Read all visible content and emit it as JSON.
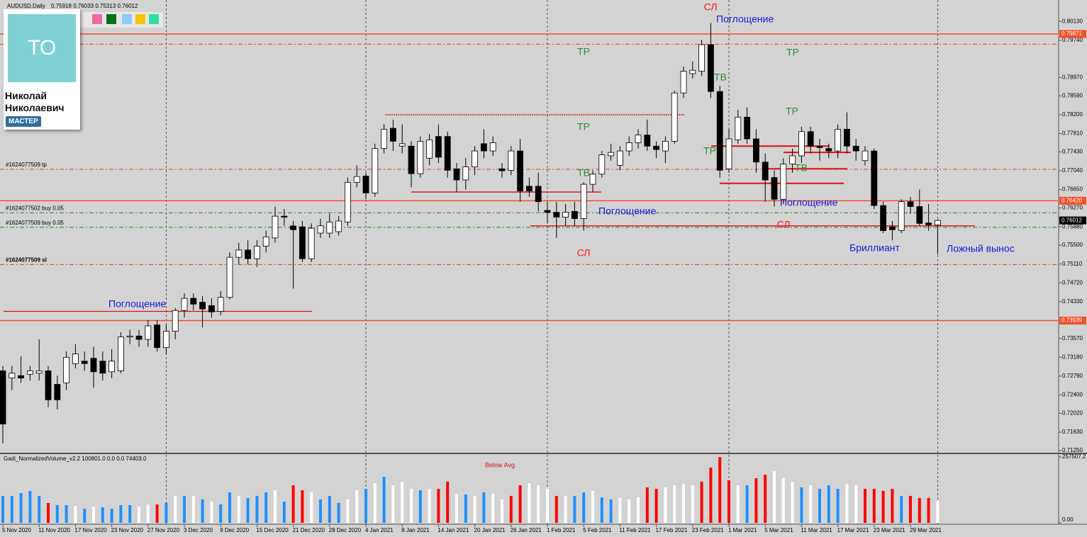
{
  "chart_data": {
    "type": "candlestick",
    "title": "AUDUSD,Daily",
    "categories": [
      "5 Nov 2020",
      null,
      null,
      null,
      "11 Nov 2020",
      null,
      null,
      null,
      "17 Nov 2020",
      null,
      null,
      null,
      "23 Nov 2020",
      null,
      null,
      null,
      "27 Nov 2020",
      null,
      null,
      null,
      "3 Dec 2020",
      null,
      null,
      null,
      "9 Dec 2020",
      null,
      null,
      null,
      "15 Dec 2020",
      null,
      null,
      null,
      "21 Dec 2020",
      null,
      null,
      null,
      "28 Dec 2020",
      null,
      null,
      null,
      "4 Jan 2021",
      null,
      null,
      null,
      "8 Jan 2021",
      null,
      null,
      null,
      "14 Jan 2021",
      null,
      null,
      null,
      "20 Jan 2021",
      null,
      null,
      null,
      "26 Jan 2021",
      null,
      null,
      null,
      "1 Feb 2021",
      null,
      null,
      null,
      "5 Feb 2021",
      null,
      null,
      null,
      "11 Feb 2021",
      null,
      null,
      null,
      "17 Feb 2021",
      null,
      null,
      null,
      "23 Feb 2021",
      null,
      null,
      null,
      "1 Mar 2021",
      null,
      null,
      null,
      "5 Mar 2021",
      null,
      null,
      null,
      "11 Mar 2021",
      null,
      null,
      null,
      "17 Mar 2021",
      null,
      null,
      null,
      "23 Mar 2021",
      null,
      null,
      null,
      "29 Mar 2021",
      null,
      null,
      null
    ],
    "open": [
      0.729,
      0.7275,
      0.728,
      0.7283,
      0.7285,
      0.729,
      0.7262,
      0.7265,
      0.7305,
      0.731,
      0.7316,
      0.731,
      0.7288,
      0.729,
      0.736,
      0.7362,
      0.7355,
      0.7385,
      0.7338,
      0.7372,
      0.7415,
      0.744,
      0.7432,
      0.7425,
      0.7413,
      0.7442,
      0.7525,
      0.754,
      0.7522,
      0.7548,
      0.7565,
      0.761,
      0.759,
      0.7588,
      0.7522,
      0.7575,
      0.7575,
      0.7578,
      0.7598,
      0.768,
      0.7693,
      0.7658,
      0.775,
      0.7792,
      0.7755,
      0.7755,
      0.7698,
      0.773,
      0.7775,
      0.7775,
      0.7708,
      0.7685,
      0.7712,
      0.776,
      0.7745,
      0.7708,
      0.7705,
      0.7745,
      0.7672,
      0.7672,
      0.7622,
      0.7618,
      0.7608,
      0.762,
      0.7605,
      0.7676,
      0.7697,
      0.7735,
      0.7715,
      0.7745,
      0.7762,
      0.7778,
      0.7755,
      0.7745,
      0.7765,
      0.7865,
      0.7905,
      0.791,
      0.7965,
      0.7868,
      0.7708,
      0.7768,
      0.7815,
      0.777,
      0.7722,
      0.769,
      0.7645,
      0.7718,
      0.7735,
      0.7785,
      0.7755,
      0.775,
      0.7745,
      0.779,
      0.7755,
      0.7725,
      0.7745,
      0.7632,
      0.7588,
      0.758,
      0.764,
      0.763,
      0.7596,
      0.75918
    ],
    "high": [
      0.73,
      0.73,
      0.732,
      0.73,
      0.7355,
      0.73,
      0.728,
      0.733,
      0.7345,
      0.733,
      0.734,
      0.733,
      0.7335,
      0.737,
      0.7375,
      0.7375,
      0.7395,
      0.7395,
      0.7385,
      0.742,
      0.745,
      0.745,
      0.7445,
      0.744,
      0.7455,
      0.7535,
      0.7555,
      0.756,
      0.756,
      0.758,
      0.763,
      0.7625,
      0.76,
      0.76,
      0.7595,
      0.7605,
      0.7615,
      0.761,
      0.769,
      0.7715,
      0.77,
      0.776,
      0.78,
      0.781,
      0.78,
      0.7765,
      0.7775,
      0.778,
      0.78,
      0.7785,
      0.772,
      0.773,
      0.7755,
      0.779,
      0.7775,
      0.772,
      0.7755,
      0.777,
      0.769,
      0.77,
      0.764,
      0.764,
      0.7635,
      0.764,
      0.768,
      0.7705,
      0.7745,
      0.776,
      0.7755,
      0.7775,
      0.779,
      0.781,
      0.7765,
      0.7775,
      0.787,
      0.792,
      0.793,
      0.7975,
      0.801,
      0.788,
      0.779,
      0.783,
      0.7835,
      0.779,
      0.774,
      0.7705,
      0.773,
      0.775,
      0.7795,
      0.7795,
      0.777,
      0.776,
      0.78,
      0.7825,
      0.777,
      0.7755,
      0.775,
      0.764,
      0.76,
      0.7645,
      0.765,
      0.7665,
      0.7635,
      0.76033
    ],
    "low": [
      0.714,
      0.725,
      0.7265,
      0.727,
      0.727,
      0.7215,
      0.721,
      0.725,
      0.7295,
      0.729,
      0.7255,
      0.727,
      0.7275,
      0.7285,
      0.7345,
      0.734,
      0.734,
      0.733,
      0.7325,
      0.7355,
      0.74,
      0.7415,
      0.738,
      0.74,
      0.7405,
      0.7438,
      0.751,
      0.751,
      0.7505,
      0.7535,
      0.7555,
      0.759,
      0.746,
      0.7515,
      0.7515,
      0.7565,
      0.7565,
      0.757,
      0.759,
      0.767,
      0.7645,
      0.765,
      0.774,
      0.7745,
      0.774,
      0.767,
      0.769,
      0.7715,
      0.772,
      0.769,
      0.766,
      0.7665,
      0.7695,
      0.773,
      0.7735,
      0.769,
      0.7695,
      0.764,
      0.765,
      0.762,
      0.7595,
      0.7565,
      0.759,
      0.759,
      0.758,
      0.766,
      0.769,
      0.7725,
      0.7705,
      0.7735,
      0.775,
      0.7745,
      0.773,
      0.772,
      0.776,
      0.7855,
      0.7895,
      0.79,
      0.7855,
      0.769,
      0.77,
      0.776,
      0.776,
      0.77,
      0.764,
      0.763,
      0.7635,
      0.77,
      0.772,
      0.774,
      0.7725,
      0.773,
      0.773,
      0.774,
      0.7725,
      0.7715,
      0.7625,
      0.7575,
      0.756,
      0.7575,
      0.7615,
      0.759,
      0.758,
      0.75313
    ],
    "close": [
      0.718,
      0.7285,
      0.7275,
      0.729,
      0.729,
      0.723,
      0.723,
      0.7318,
      0.7325,
      0.7305,
      0.7288,
      0.7285,
      0.731,
      0.736,
      0.7362,
      0.7355,
      0.7383,
      0.7338,
      0.7372,
      0.7415,
      0.744,
      0.7428,
      0.7418,
      0.7412,
      0.7442,
      0.7525,
      0.754,
      0.7522,
      0.7548,
      0.7567,
      0.761,
      0.7608,
      0.7582,
      0.7522,
      0.7585,
      0.759,
      0.7598,
      0.76,
      0.768,
      0.7692,
      0.7658,
      0.775,
      0.779,
      0.7765,
      0.776,
      0.7698,
      0.7765,
      0.7768,
      0.7732,
      0.7705,
      0.7685,
      0.7712,
      0.7745,
      0.7745,
      0.7762,
      0.7704,
      0.7745,
      0.7662,
      0.7662,
      0.764,
      0.7618,
      0.7608,
      0.7618,
      0.7605,
      0.7676,
      0.7697,
      0.7737,
      0.7742,
      0.7745,
      0.7762,
      0.7778,
      0.7755,
      0.7748,
      0.7765,
      0.7865,
      0.791,
      0.7912,
      0.7965,
      0.7868,
      0.7705,
      0.777,
      0.7815,
      0.777,
      0.7722,
      0.7685,
      0.7645,
      0.7718,
      0.7735,
      0.7785,
      0.7755,
      0.7752,
      0.7745,
      0.779,
      0.7755,
      0.7745,
      0.7745,
      0.7632,
      0.758,
      0.7582,
      0.764,
      0.763,
      0.7595,
      0.7592,
      0.76012
    ],
    "up_color": "#ffffff",
    "down_color": "#000000",
    "ylim": [
      0.7122,
      0.8053
    ],
    "yticks": [
      {
        "value": 0.8013,
        "label": "0.80130"
      },
      {
        "value": 0.7974,
        "label": "0.79740"
      },
      {
        "value": 0.7897,
        "label": "0.78970"
      },
      {
        "value": 0.7859,
        "label": "0.78590"
      },
      {
        "value": 0.782,
        "label": "0.78200"
      },
      {
        "value": 0.7781,
        "label": "0.77810"
      },
      {
        "value": 0.7743,
        "label": "0.77430"
      },
      {
        "value": 0.7704,
        "label": "0.77040"
      },
      {
        "value": 0.7665,
        "label": "0.76650"
      },
      {
        "value": 0.7627,
        "label": "0.76270"
      },
      {
        "value": 0.7588,
        "label": "0.75880"
      },
      {
        "value": 0.755,
        "label": "0.75500"
      },
      {
        "value": 0.7511,
        "label": "0.75110"
      },
      {
        "value": 0.7472,
        "label": "0.74720"
      },
      {
        "value": 0.7433,
        "label": "0.74330"
      },
      {
        "value": 0.7357,
        "label": "0.73570"
      },
      {
        "value": 0.7318,
        "label": "0.73180"
      },
      {
        "value": 0.7279,
        "label": "0.72790"
      },
      {
        "value": 0.724,
        "label": "0.72400"
      },
      {
        "value": 0.7202,
        "label": "0.72020"
      },
      {
        "value": 0.7163,
        "label": "0.71630"
      },
      {
        "value": 0.7125,
        "label": "0.71250"
      }
    ],
    "price_levels": [
      {
        "value": 0.79871,
        "color": "#f5502a"
      },
      {
        "value": 0.7642,
        "value_label": "0.76420",
        "color": "#f5502a"
      },
      {
        "value": 0.73939,
        "color": "#f5502a"
      }
    ],
    "orders": [
      {
        "label": "#1624077509 tp",
        "value": 0.7707,
        "color": "#e8401c"
      },
      {
        "label": "#1624077502 buy 0.05",
        "value": 0.7617,
        "color": "#1f8a1f"
      },
      {
        "label": "#1624077509 buy 0.05",
        "value": 0.7587,
        "color": "#1f8a1f"
      },
      {
        "label": "#1624077509 sl",
        "value": 0.751,
        "color": "#e8401c"
      }
    ],
    "dashed_level": 0.7966,
    "segments": [
      0.782,
      0.766,
      0.759,
      0.7413,
      0.7678,
      0.7755,
      0.7742,
      0.7708
    ],
    "segment_color": "#e01010",
    "period_separators": [
      18,
      40,
      60,
      80,
      103
    ],
    "annotations": [
      {
        "text": "СЛ",
        "color": "#ff1a1a"
      },
      {
        "text": "Поглощение",
        "color": "#1a1adb"
      },
      {
        "text": "ТР",
        "color": "#2e8b3e"
      },
      {
        "text": "ТР",
        "color": "#2e8b3e"
      },
      {
        "text": "ТВ",
        "color": "#2e8b3e"
      },
      {
        "text": "ТР",
        "color": "#2e8b3e"
      },
      {
        "text": "ТР",
        "color": "#2e8b3e"
      },
      {
        "text": "ТР",
        "color": "#2e8b3e"
      },
      {
        "text": "ТВ",
        "color": "#2e8b3e"
      },
      {
        "text": "ТВ",
        "color": "#2e8b3e"
      },
      {
        "text": "Поглощение",
        "color": "#1a1adb"
      },
      {
        "text": "Поглощение",
        "color": "#1a1adb"
      },
      {
        "text": "СЛ",
        "color": "#ff1a1a"
      },
      {
        "text": "СЛ",
        "color": "#ff1a1a"
      },
      {
        "text": "Бриллиант",
        "color": "#1a1adb"
      },
      {
        "text": "Ложный вынос",
        "color": "#1a1adb"
      },
      {
        "text": "Поглощение",
        "color": "#1a1adb"
      }
    ],
    "volume": {
      "name": "Gadi_NormalizedVolume_v2.2 100801.0 0.0 0.0 74403.0",
      "note": "Below Avg.",
      "note_color": "#e01010",
      "values": [
        105260,
        105260,
        116340,
        124650,
        105260,
        77560,
        69250,
        69250,
        66480,
        55400,
        63710,
        60940,
        55400,
        69250,
        69250,
        63710,
        72020,
        72020,
        77560,
        105260,
        105260,
        105260,
        91410,
        83100,
        72020,
        119110,
        105260,
        96950,
        105260,
        119110,
        127420,
        83100,
        146810,
        127420,
        119110,
        91410,
        105260,
        77560,
        91410,
        127420,
        132960,
        155120,
        180050,
        146810,
        160660,
        132960,
        127420,
        132960,
        132960,
        160660,
        113570,
        110800,
        105260,
        119110,
        113570,
        91410,
        105260,
        146810,
        155120,
        146810,
        132960,
        105260,
        105260,
        105260,
        119110,
        124650,
        99720,
        91410,
        96950,
        91410,
        99720,
        138500,
        132960,
        138500,
        146810,
        152350,
        146810,
        160660,
        216060,
        257000,
        166200,
        146810,
        146810,
        174510,
        188360,
        202210,
        174510,
        160660,
        138500,
        146810,
        132960,
        146810,
        132960,
        152350,
        146810,
        132960,
        132960,
        124650,
        132960,
        105260,
        105260,
        96950,
        96950,
        85870
      ],
      "colors": [
        "#1e90ff",
        "#1e90ff",
        "#1e90ff",
        "#1e90ff",
        "#1e90ff",
        "#ff0000",
        "#1e90ff",
        "#1e90ff",
        "#ffffff",
        "#1e90ff",
        "#ffffff",
        "#1e90ff",
        "#1e90ff",
        "#1e90ff",
        "#1e90ff",
        "#ffffff",
        "#ffffff",
        "#ff0000",
        "#1e90ff",
        "#ffffff",
        "#1e90ff",
        "#ffffff",
        "#1e90ff",
        "#ffffff",
        "#1e90ff",
        "#1e90ff",
        "#ffffff",
        "#1e90ff",
        "#1e90ff",
        "#1e90ff",
        "#ffffff",
        "#1e90ff",
        "#ff0000",
        "#ff0000",
        "#ffffff",
        "#1e90ff",
        "#1e90ff",
        "#1e90ff",
        "#ffffff",
        "#ffffff",
        "#1e90ff",
        "#ffffff",
        "#1e90ff",
        "#ffffff",
        "#ffffff",
        "#ffffff",
        "#1e90ff",
        "#ffffff",
        "#ff0000",
        "#ff0000",
        "#ffffff",
        "#1e90ff",
        "#ffffff",
        "#1e90ff",
        "#ffffff",
        "#ffffff",
        "#ff0000",
        "#ff0000",
        "#ffffff",
        "#ffffff",
        "#ffffff",
        "#ff0000",
        "#ffffff",
        "#1e90ff",
        "#1e90ff",
        "#ffffff",
        "#1e90ff",
        "#1e90ff",
        "#ffffff",
        "#ffffff",
        "#ffffff",
        "#ff0000",
        "#ff0000",
        "#ffffff",
        "#ffffff",
        "#ffffff",
        "#ffffff",
        "#ff0000",
        "#ff0000",
        "#ff0000",
        "#ff0000",
        "#ffffff",
        "#1e90ff",
        "#ff0000",
        "#ff0000",
        "#ffffff",
        "#ffffff",
        "#ffffff",
        "#1e90ff",
        "#ffffff",
        "#1e90ff",
        "#1e90ff",
        "#1e90ff",
        "#ffffff",
        "#ffffff",
        "#ff0000",
        "#ff0000",
        "#ff0000",
        "#ff0000",
        "#1e90ff",
        "#ff0000",
        "#ff0000",
        "#ff0000",
        "#ffffff"
      ],
      "ylim": [
        0,
        257507.2
      ],
      "yticks": [
        257507.2,
        {
          "value": 0,
          "label": "0.00"
        }
      ]
    }
  },
  "profile": {
    "avatar": "ТО",
    "name": [
      "Николай",
      "Николаевич"
    ],
    "badge": "МАСТЕР"
  }
}
